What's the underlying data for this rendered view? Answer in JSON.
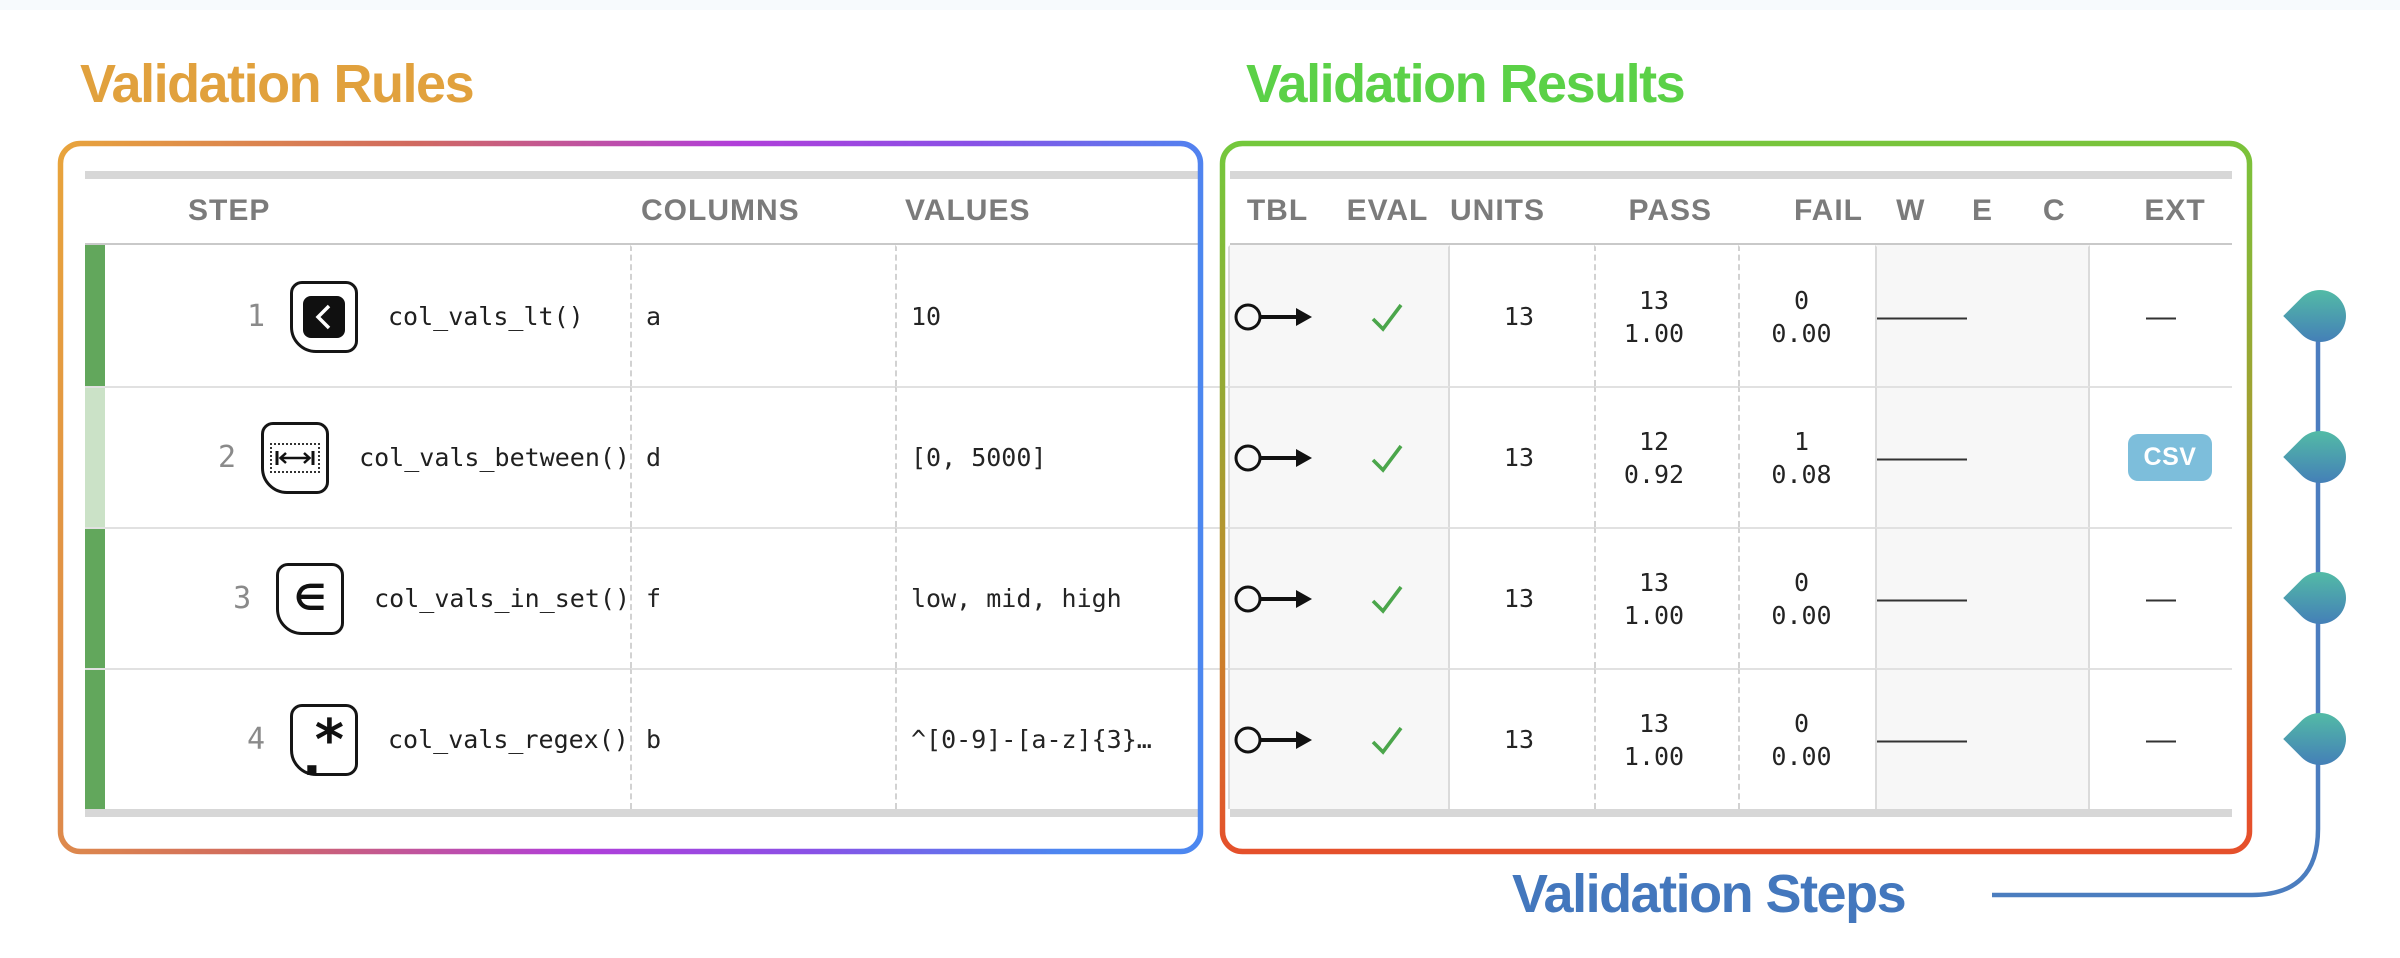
{
  "titles": {
    "rules": {
      "label": "Validation Rules",
      "color": "#E1A13D"
    },
    "results": {
      "label": "Validation Results",
      "color": "#5BD147"
    },
    "steps": {
      "label": "Validation Steps",
      "color": "#4377BD"
    }
  },
  "table": {
    "headers": {
      "step": "STEP",
      "columns": "COLUMNS",
      "values": "VALUES",
      "tbl": "TBL",
      "eval": "EVAL",
      "units": "UNITS",
      "pass": "PASS",
      "fail": "FAIL",
      "w": "W",
      "e": "E",
      "c": "C",
      "ext": "EXT"
    },
    "rows": [
      {
        "step": "1",
        "icon": "col-vals-lt",
        "fn": "col_vals_lt()",
        "columns": "a",
        "values": "10",
        "units": "13",
        "pass": "13",
        "pass_frac": "1.00",
        "fail": "0",
        "fail_frac": "0.00",
        "w": "—",
        "e": "—",
        "c": "—",
        "ext": {
          "type": "dash",
          "label": "—"
        },
        "bar": "solid"
      },
      {
        "step": "2",
        "icon": "col-vals-between",
        "fn": "col_vals_between()",
        "columns": "d",
        "values": "[0, 5000]",
        "units": "13",
        "pass": "12",
        "pass_frac": "0.92",
        "fail": "1",
        "fail_frac": "0.08",
        "w": "—",
        "e": "—",
        "c": "—",
        "ext": {
          "type": "badge",
          "label": "CSV"
        },
        "bar": "pale"
      },
      {
        "step": "3",
        "icon": "col-vals-in-set",
        "fn": "col_vals_in_set()",
        "columns": "f",
        "values": "low, mid, high",
        "units": "13",
        "pass": "13",
        "pass_frac": "1.00",
        "fail": "0",
        "fail_frac": "0.00",
        "w": "—",
        "e": "—",
        "c": "—",
        "ext": {
          "type": "dash",
          "label": "—"
        },
        "bar": "solid"
      },
      {
        "step": "4",
        "icon": "col-vals-regex",
        "fn": "col_vals_regex()",
        "columns": "b",
        "values": "^[0-9]-[a-z]{3}…",
        "units": "13",
        "pass": "13",
        "pass_frac": "1.00",
        "fail": "0",
        "fail_frac": "0.00",
        "w": "—",
        "e": "—",
        "c": "—",
        "ext": {
          "type": "dash",
          "label": "—"
        },
        "bar": "solid"
      }
    ]
  },
  "colors": {
    "rules_box_gradient": [
      "#E8A43C",
      "#D16A5E",
      "#B13ED9",
      "#8A50E6",
      "#4C87F0"
    ],
    "results_box_gradient": [
      "#74C83C",
      "#9AA633",
      "#C8872B",
      "#E5502B"
    ],
    "status_bar_solid": "#62A75C",
    "status_bar_pale": "#CBE2C7",
    "check_green": "#4BA64B",
    "csv_badge_bg": "#7DBEDB",
    "marker_teal": "#56C7A2",
    "marker_blue": "#4173BB",
    "connector_blue": "#4B7DBF"
  }
}
